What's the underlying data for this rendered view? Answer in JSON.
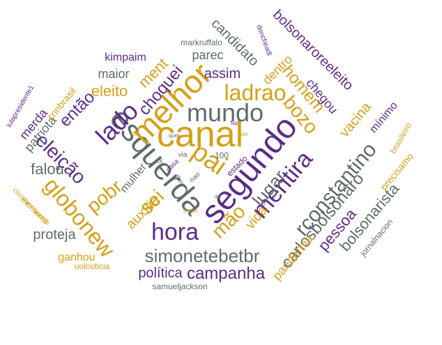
{
  "palette": {
    "purple": "#5B2C8A",
    "gold": "#D4A017",
    "gray": "#5F6B6B",
    "background": "#ffffff"
  },
  "words": [
    {
      "text": "canal",
      "color": "gold"
    },
    {
      "text": "esquerda",
      "color": "gray"
    },
    {
      "text": "segundo",
      "color": "purple"
    },
    {
      "text": "melhor",
      "color": "gold"
    },
    {
      "text": "mundo",
      "color": "gray"
    },
    {
      "text": "pai",
      "color": "gold"
    },
    {
      "text": "ladrao",
      "color": "gold"
    },
    {
      "text": "lado",
      "color": "purple"
    },
    {
      "text": "hora",
      "color": "purple"
    },
    {
      "text": "globonew",
      "color": "gold"
    },
    {
      "text": "mentira",
      "color": "purple"
    },
    {
      "text": "bozo",
      "color": "gold"
    },
    {
      "text": "mão",
      "color": "gold"
    },
    {
      "text": "rconstantino",
      "color": "gray"
    },
    {
      "text": "simonetebetbr",
      "color": "gray"
    },
    {
      "text": "eleição",
      "color": "purple"
    },
    {
      "text": "sei",
      "color": "gold"
    },
    {
      "text": "lugar",
      "color": "gray"
    },
    {
      "text": "pobr",
      "color": "gold"
    },
    {
      "text": "campanha",
      "color": "purple"
    },
    {
      "text": "homem",
      "color": "gold"
    },
    {
      "text": "choquei",
      "color": "purple"
    },
    {
      "text": "falou",
      "color": "gray"
    },
    {
      "text": "então",
      "color": "purple"
    },
    {
      "text": "candidato",
      "color": "gray"
    },
    {
      "text": "ment",
      "color": "gold"
    },
    {
      "text": "assim",
      "color": "purple"
    },
    {
      "text": "eleito",
      "color": "gold"
    },
    {
      "text": "carlosbolsonaro",
      "color": "gray"
    },
    {
      "text": "bolsonaroreeleito",
      "color": "purple"
    },
    {
      "text": "vida",
      "color": "gold"
    },
    {
      "text": "pessoa",
      "color": "purple"
    },
    {
      "text": "bolsonarista",
      "color": "gray"
    },
    {
      "text": "vacina",
      "color": "gold"
    },
    {
      "text": "auxílio",
      "color": "gold"
    },
    {
      "text": "proteja",
      "color": "gray"
    },
    {
      "text": "política",
      "color": "purple"
    },
    {
      "text": "chegou",
      "color": "purple"
    },
    {
      "text": "maior",
      "color": "gray"
    },
    {
      "text": "dentro",
      "color": "gold"
    },
    {
      "text": "patriota",
      "color": "gray"
    },
    {
      "text": "merda",
      "color": "purple"
    },
    {
      "text": "pandemia",
      "color": "gold"
    },
    {
      "text": "parec",
      "color": "gray"
    },
    {
      "text": "kimpaim",
      "color": "purple"
    },
    {
      "text": "mulher",
      "color": "gray"
    },
    {
      "text": "ganhou",
      "color": "gold"
    },
    {
      "text": "cnnbrasil",
      "color": "gold"
    },
    {
      "text": "mínimo",
      "color": "purple"
    },
    {
      "text": "precisamo",
      "color": "gold"
    },
    {
      "text": "brasileiro",
      "color": "gold"
    },
    {
      "text": "uolnoticia",
      "color": "gold"
    },
    {
      "text": "samueljackson",
      "color": "gray"
    },
    {
      "text": "markruffalo",
      "color": "gray"
    },
    {
      "text": "jornalnacion",
      "color": "gray"
    },
    {
      "text": "momento",
      "color": "gold"
    },
    {
      "text": "doncheadl",
      "color": "purple"
    },
    {
      "text": "lulapresidente1",
      "color": "purple"
    },
    {
      "text": "chrishemsworth",
      "color": "gold"
    },
    {
      "text": "100",
      "color": "gray"
    },
    {
      "text": "estado",
      "color": "purple"
    },
    {
      "text": "via",
      "color": "gray"
    },
    {
      "text": "casa",
      "color": "purple"
    },
    {
      "text": "ex",
      "color": "gray"
    },
    {
      "text": "nao",
      "color": "gray"
    },
    {
      "text": "rfrent",
      "color": "gray"
    },
    {
      "text": "sim",
      "color": "gold"
    },
    {
      "text": "t3",
      "color": "gray"
    },
    {
      "text": "t3",
      "color": "gold"
    },
    {
      "text": "sobre",
      "color": "gold"
    },
    {
      "text": "faz",
      "color": "purple"
    },
    {
      "text": "quer",
      "color": "gray"
    },
    {
      "text": "voto",
      "color": "gold"
    },
    {
      "text": "dia",
      "color": "gray"
    }
  ]
}
